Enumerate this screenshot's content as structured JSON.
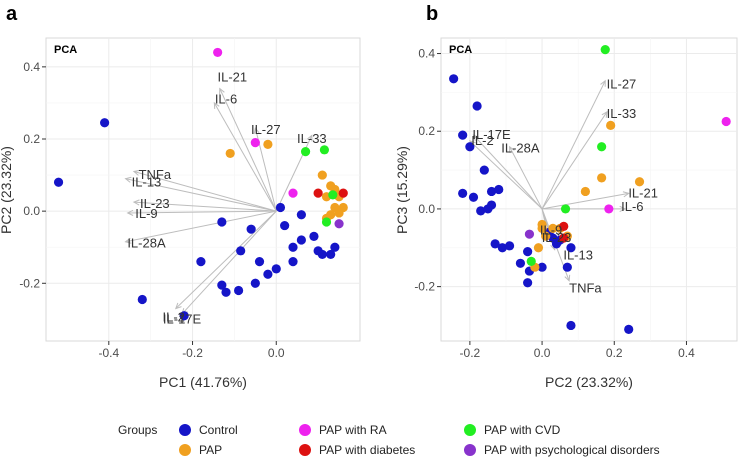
{
  "legend": {
    "title": "Groups",
    "entries": [
      {
        "name": "Control",
        "color": "#1515c8"
      },
      {
        "name": "PAP",
        "color": "#f0a020"
      },
      {
        "name": "PAP with RA",
        "color": "#ee22ee"
      },
      {
        "name": "PAP with diabetes",
        "color": "#dd1111"
      },
      {
        "name": "PAP with CVD",
        "color": "#22ee22"
      },
      {
        "name": "PAP with psychological disorders",
        "color": "#8833cc"
      }
    ]
  },
  "chart_data": [
    {
      "type": "scatter",
      "panel_label": "a",
      "title": "PCA",
      "xlabel": "PC1 (41.76%)",
      "ylabel": "PC2 (23.32%)",
      "xlim": [
        -0.55,
        0.2
      ],
      "ylim": [
        -0.36,
        0.48
      ],
      "xticks": [
        -0.4,
        -0.2,
        0.0
      ],
      "xtick_labels": [
        "-0.4",
        "-0.2",
        "0.0"
      ],
      "yticks": [
        -0.2,
        0.0,
        0.2,
        0.4
      ],
      "ytick_labels": [
        "-0.2",
        "0.0",
        "0.2",
        "0.4"
      ],
      "grid": true,
      "vectors": [
        {
          "label": "IL-21",
          "x": -0.135,
          "y": 0.34,
          "lx": -0.105,
          "ly": 0.37
        },
        {
          "label": "IL-6",
          "x": -0.148,
          "y": 0.3,
          "lx": -0.12,
          "ly": 0.31
        },
        {
          "label": "IL-27",
          "x": -0.05,
          "y": 0.23,
          "lx": -0.025,
          "ly": 0.225
        },
        {
          "label": "IL-33",
          "x": 0.085,
          "y": 0.21,
          "lx": 0.085,
          "ly": 0.2
        },
        {
          "label": "TNFa",
          "x": -0.34,
          "y": 0.11,
          "lx": -0.29,
          "ly": 0.1
        },
        {
          "label": "IL-13",
          "x": -0.36,
          "y": 0.09,
          "lx": -0.31,
          "ly": 0.08
        },
        {
          "label": "IL-23",
          "x": -0.34,
          "y": 0.025,
          "lx": -0.29,
          "ly": 0.02
        },
        {
          "label": "IL-9",
          "x": -0.355,
          "y": -0.005,
          "lx": -0.31,
          "ly": -0.008
        },
        {
          "label": "IL-28A",
          "x": -0.36,
          "y": -0.085,
          "lx": -0.31,
          "ly": -0.09
        },
        {
          "label": "IL-2",
          "x": -0.24,
          "y": -0.27,
          "lx": -0.245,
          "ly": -0.295
        },
        {
          "label": "IL-17E",
          "x": -0.225,
          "y": -0.285,
          "lx": -0.225,
          "ly": -0.3
        }
      ],
      "series": [
        {
          "name": "Control",
          "points": [
            [
              -0.52,
              0.08
            ],
            [
              -0.41,
              0.245
            ],
            [
              -0.32,
              -0.245
            ],
            [
              -0.22,
              -0.29
            ],
            [
              -0.18,
              -0.14
            ],
            [
              -0.13,
              -0.205
            ],
            [
              -0.12,
              -0.225
            ],
            [
              -0.13,
              -0.03
            ],
            [
              -0.09,
              -0.22
            ],
            [
              -0.085,
              -0.11
            ],
            [
              -0.06,
              -0.05
            ],
            [
              -0.05,
              -0.2
            ],
            [
              -0.04,
              -0.14
            ],
            [
              -0.02,
              -0.175
            ],
            [
              0.0,
              -0.16
            ],
            [
              0.02,
              -0.04
            ],
            [
              0.04,
              -0.1
            ],
            [
              0.04,
              -0.14
            ],
            [
              0.06,
              -0.08
            ],
            [
              0.09,
              -0.07
            ],
            [
              0.1,
              -0.11
            ],
            [
              0.11,
              -0.12
            ],
            [
              0.13,
              -0.12
            ],
            [
              0.14,
              -0.1
            ],
            [
              0.01,
              0.01
            ],
            [
              0.06,
              -0.01
            ]
          ]
        },
        {
          "name": "PAP",
          "points": [
            [
              -0.11,
              0.16
            ],
            [
              -0.02,
              0.185
            ],
            [
              0.11,
              0.1
            ],
            [
              0.13,
              0.07
            ],
            [
              0.14,
              0.01
            ],
            [
              0.15,
              -0.005
            ],
            [
              0.13,
              -0.01
            ],
            [
              0.16,
              0.01
            ],
            [
              0.12,
              0.04
            ],
            [
              0.15,
              0.04
            ],
            [
              0.14,
              0.06
            ],
            [
              0.12,
              -0.02
            ]
          ]
        },
        {
          "name": "PAP with RA",
          "points": [
            [
              -0.14,
              0.44
            ],
            [
              -0.05,
              0.19
            ],
            [
              0.04,
              0.05
            ]
          ]
        },
        {
          "name": "PAP with diabetes",
          "points": [
            [
              0.1,
              0.05
            ],
            [
              0.16,
              0.05
            ]
          ]
        },
        {
          "name": "PAP with CVD",
          "points": [
            [
              0.07,
              0.165
            ],
            [
              0.115,
              0.17
            ],
            [
              0.135,
              0.045
            ],
            [
              0.12,
              -0.03
            ]
          ]
        },
        {
          "name": "PAP with psychological disorders",
          "points": [
            [
              0.15,
              -0.035
            ]
          ]
        }
      ]
    },
    {
      "type": "scatter",
      "panel_label": "b",
      "title": "PCA",
      "xlabel": "PC2 (23.32%)",
      "ylabel": "PC3 (15.29%)",
      "xlim": [
        -0.28,
        0.54
      ],
      "ylim": [
        -0.34,
        0.44
      ],
      "xticks": [
        -0.2,
        0.0,
        0.2,
        0.4
      ],
      "xtick_labels": [
        "-0.2",
        "0.0",
        "0.2",
        "0.4"
      ],
      "yticks": [
        -0.2,
        0.0,
        0.2,
        0.4
      ],
      "ytick_labels": [
        "-0.2",
        "0.0",
        "0.2",
        "0.4"
      ],
      "grid": true,
      "vectors": [
        {
          "label": "IL-27",
          "x": 0.175,
          "y": 0.33,
          "lx": 0.22,
          "ly": 0.32
        },
        {
          "label": "IL-33",
          "x": 0.18,
          "y": 0.25,
          "lx": 0.22,
          "ly": 0.245
        },
        {
          "label": "IL-17E",
          "x": -0.19,
          "y": 0.19,
          "lx": -0.14,
          "ly": 0.19
        },
        {
          "label": "IL-2",
          "x": -0.2,
          "y": 0.175,
          "lx": -0.165,
          "ly": 0.175
        },
        {
          "label": "IL-28A",
          "x": -0.09,
          "y": 0.16,
          "lx": -0.06,
          "ly": 0.155
        },
        {
          "label": "IL-21",
          "x": 0.24,
          "y": 0.04,
          "lx": 0.28,
          "ly": 0.04
        },
        {
          "label": "IL-6",
          "x": 0.23,
          "y": 0.0,
          "lx": 0.25,
          "ly": 0.005
        },
        {
          "label": "IL-9",
          "x": 0.015,
          "y": -0.065,
          "lx": 0.025,
          "ly": -0.055
        },
        {
          "label": "IL-23",
          "x": 0.025,
          "y": -0.075,
          "lx": 0.04,
          "ly": -0.075
        },
        {
          "label": "IL-13",
          "x": 0.035,
          "y": -0.105,
          "lx": 0.1,
          "ly": -0.12
        },
        {
          "label": "TNFa",
          "x": 0.075,
          "y": -0.185,
          "lx": 0.12,
          "ly": -0.205
        }
      ],
      "series": [
        {
          "name": "Control",
          "points": [
            [
              -0.245,
              0.335
            ],
            [
              -0.18,
              0.265
            ],
            [
              -0.22,
              0.19
            ],
            [
              -0.2,
              0.16
            ],
            [
              -0.16,
              0.1
            ],
            [
              -0.22,
              0.04
            ],
            [
              -0.19,
              0.03
            ],
            [
              -0.14,
              0.045
            ],
            [
              -0.12,
              0.05
            ],
            [
              -0.14,
              0.01
            ],
            [
              -0.17,
              -0.005
            ],
            [
              -0.15,
              0.0
            ],
            [
              -0.13,
              -0.09
            ],
            [
              -0.11,
              -0.1
            ],
            [
              -0.09,
              -0.095
            ],
            [
              -0.06,
              -0.14
            ],
            [
              -0.04,
              -0.11
            ],
            [
              -0.035,
              -0.16
            ],
            [
              -0.04,
              -0.19
            ],
            [
              0.0,
              -0.15
            ],
            [
              0.04,
              -0.09
            ],
            [
              0.02,
              -0.06
            ],
            [
              0.05,
              -0.08
            ],
            [
              0.08,
              -0.3
            ],
            [
              0.24,
              -0.31
            ],
            [
              0.07,
              -0.15
            ],
            [
              0.08,
              -0.1
            ],
            [
              0.03,
              -0.075
            ]
          ]
        },
        {
          "name": "PAP",
          "points": [
            [
              0.19,
              0.215
            ],
            [
              0.27,
              0.07
            ],
            [
              0.165,
              0.08
            ],
            [
              0.12,
              0.045
            ],
            [
              0.0,
              -0.04
            ],
            [
              0.0,
              -0.05
            ],
            [
              0.03,
              -0.05
            ],
            [
              0.01,
              -0.07
            ],
            [
              -0.01,
              -0.1
            ],
            [
              -0.02,
              -0.15
            ],
            [
              0.05,
              -0.05
            ],
            [
              0.07,
              -0.07
            ]
          ]
        },
        {
          "name": "PAP with RA",
          "points": [
            [
              0.51,
              0.225
            ],
            [
              0.185,
              0.0
            ]
          ]
        },
        {
          "name": "PAP with diabetes",
          "points": [
            [
              0.06,
              -0.045
            ],
            [
              0.06,
              -0.075
            ]
          ]
        },
        {
          "name": "PAP with CVD",
          "points": [
            [
              0.175,
              0.41
            ],
            [
              0.165,
              0.16
            ],
            [
              0.065,
              0.0
            ],
            [
              -0.03,
              -0.135
            ]
          ]
        },
        {
          "name": "PAP with psychological disorders",
          "points": [
            [
              -0.035,
              -0.065
            ]
          ]
        }
      ]
    }
  ]
}
